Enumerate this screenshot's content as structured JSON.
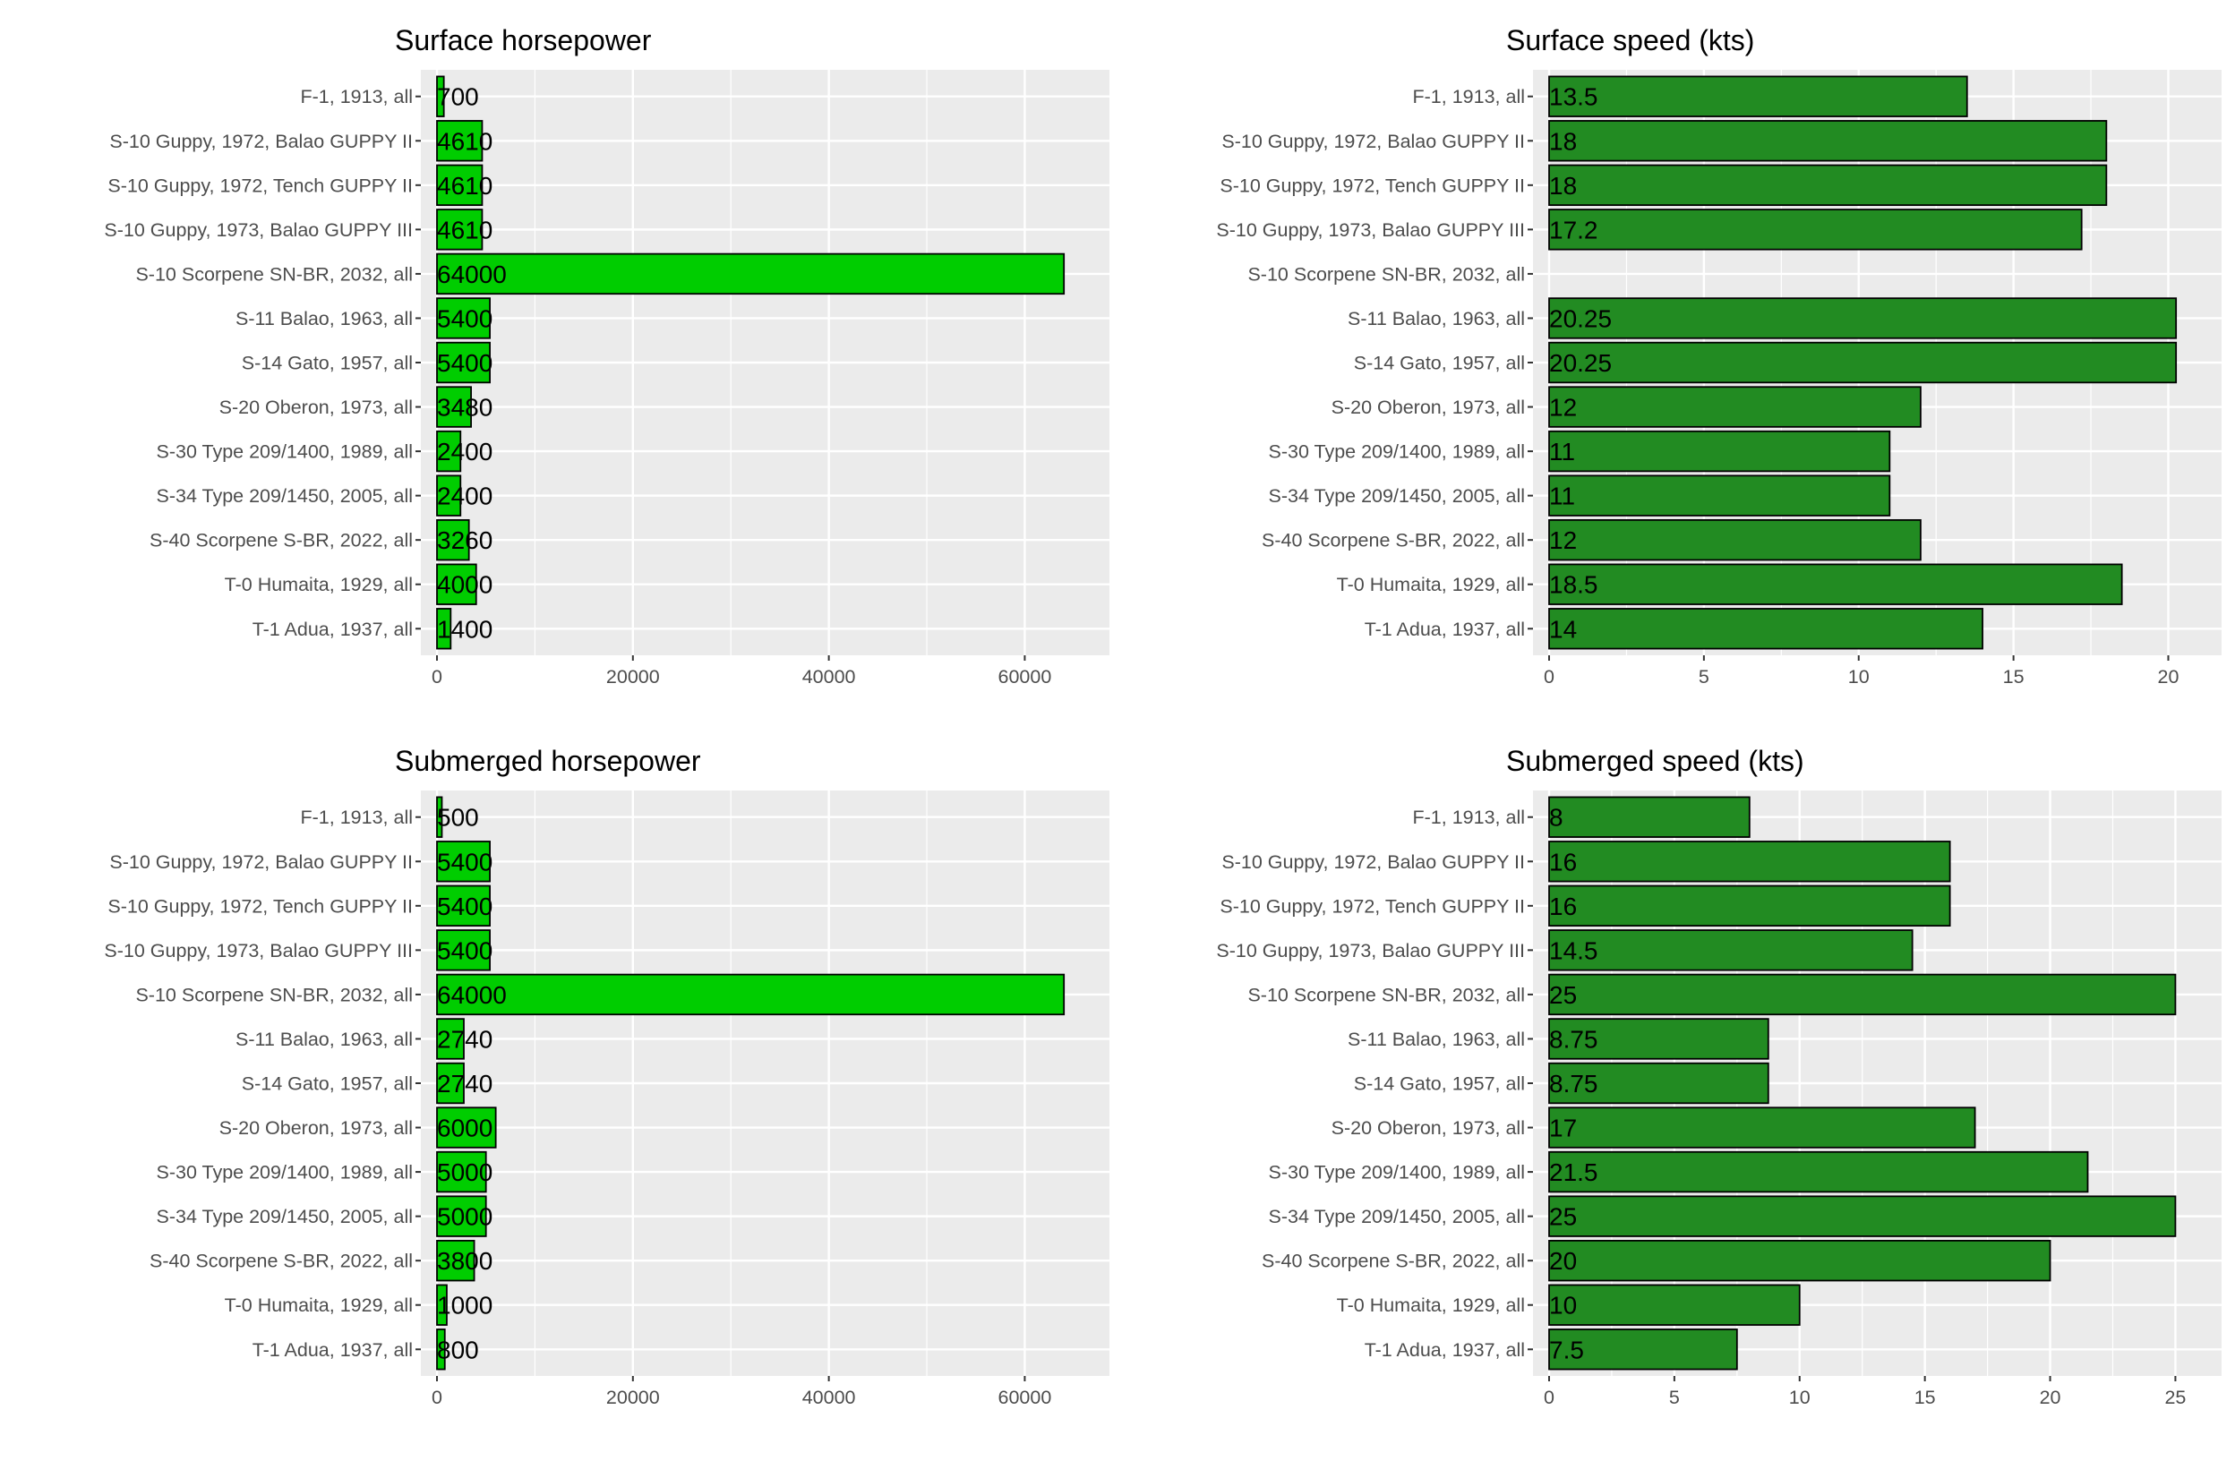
{
  "categories": [
    "F-1, 1913, all",
    "S-10 Guppy, 1972, Balao GUPPY II",
    "S-10 Guppy, 1972, Tench GUPPY II",
    "S-10 Guppy, 1973, Balao GUPPY III",
    "S-10 Scorpene SN-BR, 2032, all",
    "S-11 Balao, 1963, all",
    "S-14 Gato, 1957, all",
    "S-20 Oberon, 1973, all",
    "S-30 Type 209/1400, 1989, all",
    "S-34 Type 209/1450, 2005, all",
    "S-40 Scorpene S-BR, 2022, all",
    "T-0 Humaita, 1929, all",
    "T-1 Adua, 1937, all"
  ],
  "chart_data": [
    {
      "type": "bar",
      "orientation": "horizontal",
      "title": "Surface horsepower",
      "xlim": [
        0,
        67000
      ],
      "ticks": [
        0,
        20000,
        40000,
        60000
      ],
      "fill": "#00CD00",
      "values": [
        700,
        4610,
        4610,
        4610,
        64000,
        5400,
        5400,
        3480,
        2400,
        2400,
        3260,
        4000,
        1400
      ],
      "labels": [
        "700",
        "4610",
        "4610",
        "4610",
        "64000",
        "5400",
        "5400",
        "3480",
        "2400",
        "2400",
        "3260",
        "4000",
        "1400"
      ]
    },
    {
      "type": "bar",
      "orientation": "horizontal",
      "title": "Surface speed (kts)",
      "xlim": [
        0,
        21.2
      ],
      "ticks": [
        0,
        5,
        10,
        15,
        20
      ],
      "fill": "#228B22",
      "values": [
        13.5,
        18,
        18,
        17.2,
        null,
        20.25,
        20.25,
        12,
        11,
        11,
        12,
        18.5,
        14
      ],
      "labels": [
        "13.5",
        "18",
        "18",
        "17.2",
        "",
        "20.25",
        "20.25",
        "12",
        "11",
        "11",
        "12",
        "18.5",
        "14"
      ]
    },
    {
      "type": "bar",
      "orientation": "horizontal",
      "title": "Submerged horsepower",
      "xlim": [
        0,
        67000
      ],
      "ticks": [
        0,
        20000,
        40000,
        60000
      ],
      "fill": "#00CD00",
      "values": [
        500,
        5400,
        5400,
        5400,
        64000,
        2740,
        2740,
        6000,
        5000,
        5000,
        3800,
        1000,
        800
      ],
      "labels": [
        "500",
        "5400",
        "5400",
        "5400",
        "64000",
        "2740",
        "2740",
        "6000",
        "5000",
        "5000",
        "3800",
        "1000",
        "800"
      ]
    },
    {
      "type": "bar",
      "orientation": "horizontal",
      "title": "Submerged speed (kts)",
      "xlim": [
        0,
        26.2
      ],
      "ticks": [
        0,
        5,
        10,
        15,
        20,
        25
      ],
      "fill": "#228B22",
      "values": [
        8,
        16,
        16,
        14.5,
        25,
        8.75,
        8.75,
        17,
        21.5,
        25,
        20,
        10,
        7.5
      ],
      "labels": [
        "8",
        "16",
        "16",
        "14.5",
        "25",
        "8.75",
        "8.75",
        "17",
        "21.5",
        "25",
        "20",
        "10",
        "7.5"
      ]
    }
  ],
  "colors": {
    "panel_background": "#EBEBEB",
    "gridline": "#FFFFFF",
    "bar_outline": "#000000",
    "axis_text": "#4D4D4D",
    "title_text": "#000000"
  }
}
